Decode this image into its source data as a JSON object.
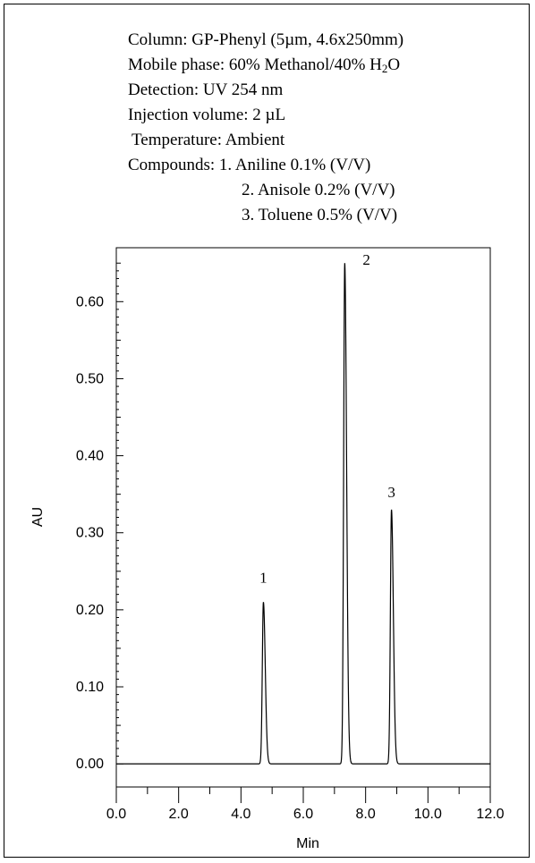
{
  "info": {
    "column": "Column: GP-Phenyl (5µm, 4.6x250mm)",
    "mobile_phase_pre": "Mobile phase: 60% Methanol/40% H",
    "mobile_phase_sub": "2",
    "mobile_phase_post": "O",
    "detection": "Detection: UV 254 nm",
    "injection": "Injection volume: 2 µL",
    "temperature": "Temperature: Ambient",
    "compounds_label": "Compounds: ",
    "compounds": [
      "1. Aniline 0.1% (V/V)",
      "2. Anisole 0.2% (V/V)",
      "3. Toluene 0.5% (V/V)"
    ]
  },
  "chart_data": {
    "type": "line",
    "xlabel": "Min",
    "ylabel": "AU",
    "xlim": [
      0.0,
      12.0
    ],
    "ylim": [
      -0.03,
      0.67
    ],
    "x_ticks": [
      "0.0",
      "2.0",
      "4.0",
      "6.0",
      "8.0",
      "10.0",
      "12.0"
    ],
    "y_ticks": [
      "0.00",
      "0.10",
      "0.20",
      "0.30",
      "0.40",
      "0.50",
      "0.60"
    ],
    "baseline": 0.0,
    "peaks": [
      {
        "label": "1",
        "rt": 4.72,
        "height": 0.21
      },
      {
        "label": "2",
        "rt": 7.33,
        "height": 0.65
      },
      {
        "label": "3",
        "rt": 8.83,
        "height": 0.33
      }
    ],
    "grid": false,
    "line_color": "#000000"
  }
}
